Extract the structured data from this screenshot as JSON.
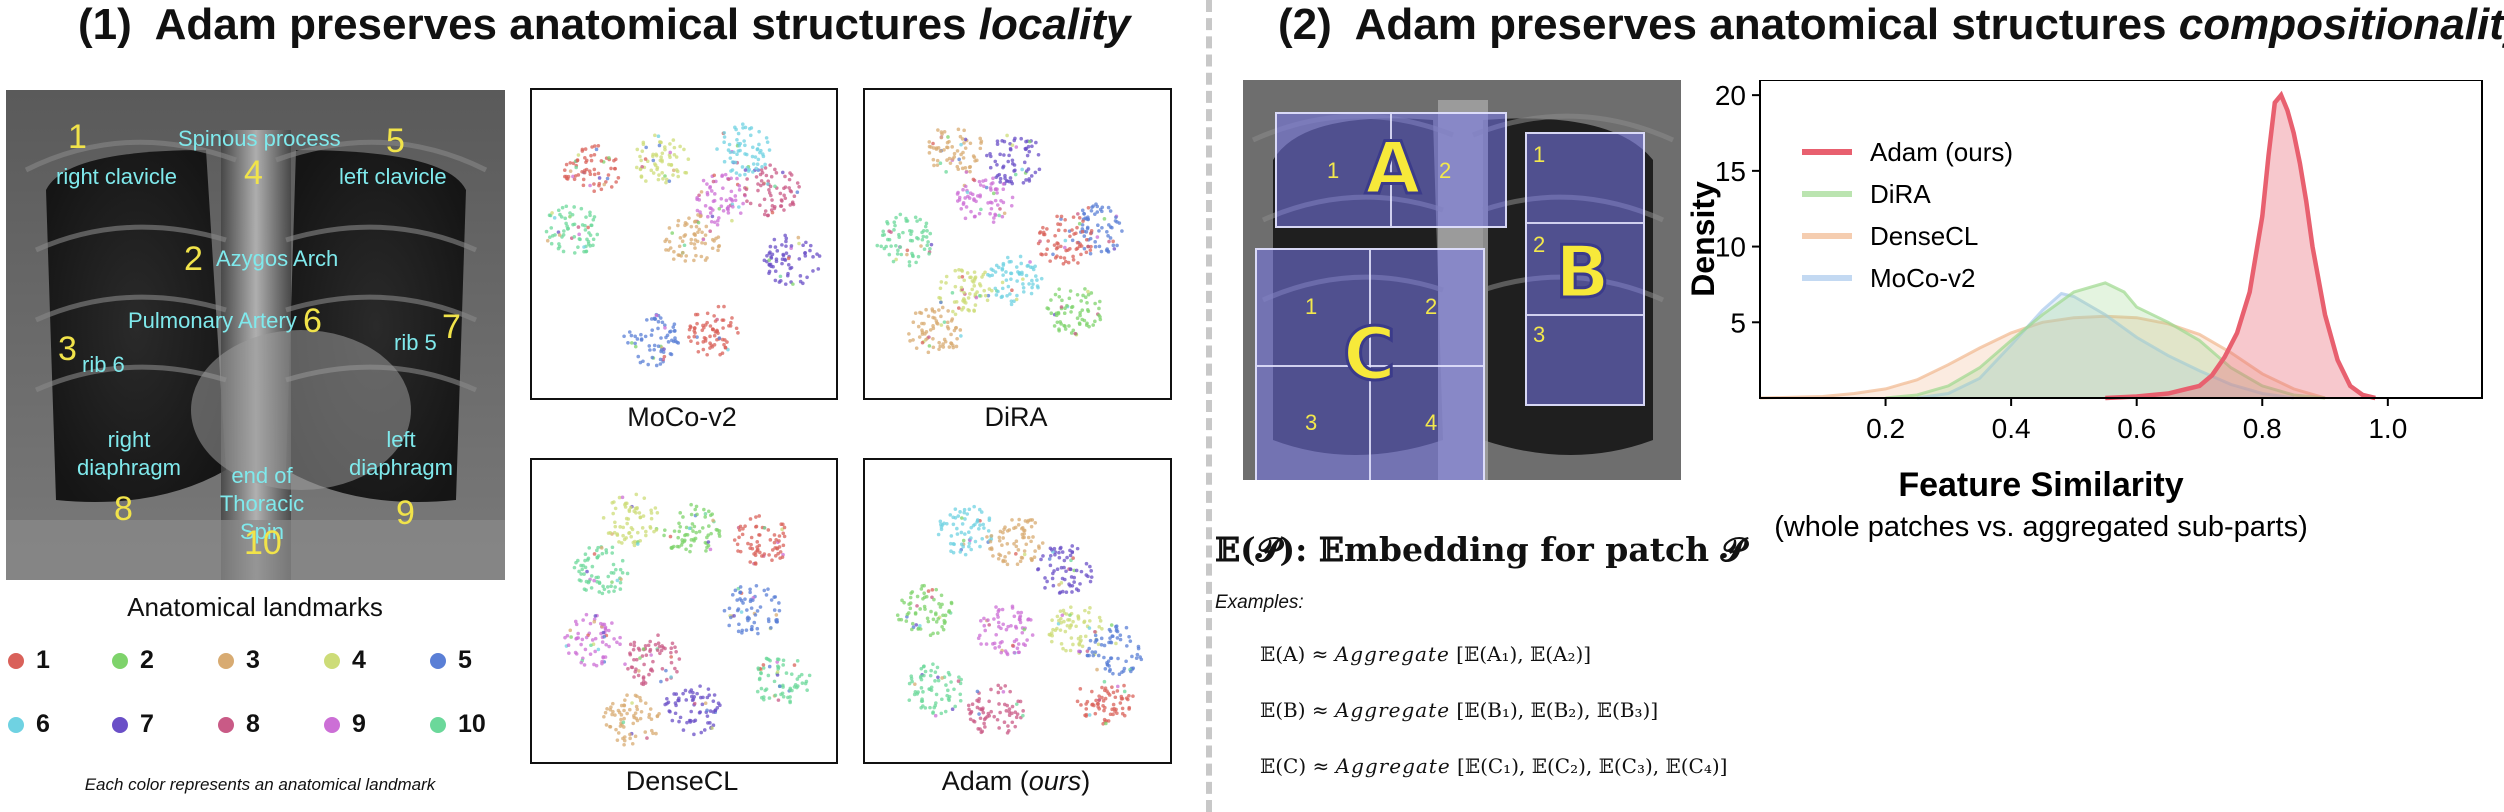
{
  "panel1": {
    "num": "(1)",
    "title": "Adam preserves anatomical structures ",
    "title_em": "locality"
  },
  "panel2": {
    "num": "(2)",
    "title": "Adam preserves anatomical structures ",
    "title_em": "compositionality"
  },
  "xray_labels": [
    {
      "n": "1",
      "text": "right clavicle"
    },
    {
      "n": "2",
      "text": "Azygos Arch"
    },
    {
      "n": "3",
      "text": "rib 6"
    },
    {
      "n": "4",
      "text": "Spinous process"
    },
    {
      "n": "5",
      "text": "left clavicle"
    },
    {
      "n": "6",
      "text": "Pulmonary Artery"
    },
    {
      "n": "7",
      "text": "rib 5"
    },
    {
      "n": "8",
      "text": "right diaphragm"
    },
    {
      "n": "9",
      "text": "left diaphragm"
    },
    {
      "n": "10",
      "text": "end of Thoracic Spin"
    }
  ],
  "legend": {
    "title": "Anatomical landmarks",
    "footnote": "Each color represents an anatomical landmark",
    "items": [
      {
        "label": "1",
        "color": "#d9615a"
      },
      {
        "label": "2",
        "color": "#7ed36b"
      },
      {
        "label": "3",
        "color": "#d8ab72"
      },
      {
        "label": "4",
        "color": "#cddc78"
      },
      {
        "label": "5",
        "color": "#5a7fd6"
      },
      {
        "label": "6",
        "color": "#6fd2e2"
      },
      {
        "label": "7",
        "color": "#6a4fc7"
      },
      {
        "label": "8",
        "color": "#c95a86"
      },
      {
        "label": "9",
        "color": "#cc6fd6"
      },
      {
        "label": "10",
        "color": "#6bd89a"
      }
    ]
  },
  "tsne": {
    "mocov2": "MoCo-v2",
    "dira": "DiRA",
    "densecl": "DenseCL",
    "adam": "Adam (",
    "adam_em": "ours",
    "adam_close": ")"
  },
  "patches": {
    "A": "A",
    "B": "B",
    "C": "C",
    "a1": "1",
    "a2": "2",
    "b1": "1",
    "b2": "2",
    "b3": "3",
    "c1": "1",
    "c2": "2",
    "c3": "3",
    "c4": "4"
  },
  "embedding": {
    "title": "𝔼(𝓟): 𝔼mbedding for patch 𝓟",
    "examples": "Examples:",
    "eqA_lhs": "𝔼(A) ≈ ",
    "eqA_ag": "Aggregate",
    "eqA_rhs": " [𝔼(A₁), 𝔼(A₂)]",
    "eqB_lhs": "𝔼(B) ≈ ",
    "eqB_ag": "Aggregate",
    "eqB_rhs": " [𝔼(B₁), 𝔼(B₂), 𝔼(B₃)]",
    "eqC_lhs": "𝔼(C) ≈ ",
    "eqC_ag": "Aggregate",
    "eqC_rhs": " [𝔼(C₁), 𝔼(C₂), 𝔼(C₃), 𝔼(C₄)]"
  },
  "chart_data": {
    "type": "area",
    "xlabel": "Feature Similarity",
    "xlabel_sub": "(whole patches vs. aggregated sub-parts)",
    "ylabel": "Density",
    "xlim": [
      0.0,
      1.15
    ],
    "ylim": [
      0,
      21
    ],
    "xticks": [
      "0.2",
      "0.4",
      "0.6",
      "0.8",
      "1.0"
    ],
    "xtick_values": [
      0.2,
      0.4,
      0.6,
      0.8,
      1.0
    ],
    "yticks": [
      "5",
      "10",
      "15",
      "20"
    ],
    "ytick_values": [
      5,
      10,
      15,
      20
    ],
    "legend_position": "top-left",
    "series": [
      {
        "name": "Adam (ours)",
        "color": "#e8606f",
        "x": [
          0.55,
          0.6,
          0.65,
          0.68,
          0.7,
          0.72,
          0.74,
          0.76,
          0.78,
          0.8,
          0.81,
          0.82,
          0.83,
          0.84,
          0.85,
          0.86,
          0.87,
          0.88,
          0.9,
          0.92,
          0.94,
          0.96,
          0.98
        ],
        "y": [
          0,
          0.1,
          0.3,
          0.6,
          0.8,
          1.5,
          2.7,
          4.3,
          7.0,
          12.0,
          16.0,
          19.5,
          20.0,
          19.0,
          17.5,
          15.5,
          13.0,
          10.0,
          5.5,
          2.5,
          0.8,
          0.2,
          0
        ]
      },
      {
        "name": "DiRA",
        "color": "#9ed98f",
        "x": [
          0.2,
          0.25,
          0.3,
          0.35,
          0.4,
          0.45,
          0.5,
          0.55,
          0.58,
          0.6,
          0.65,
          0.7,
          0.75,
          0.8,
          0.85,
          0.9
        ],
        "y": [
          0,
          0.2,
          0.8,
          2.0,
          3.8,
          5.5,
          7.0,
          7.6,
          7.0,
          6.0,
          5.0,
          3.8,
          2.0,
          0.8,
          0.2,
          0
        ]
      },
      {
        "name": "DenseCL",
        "color": "#f1b88f",
        "x": [
          0.0,
          0.1,
          0.15,
          0.2,
          0.25,
          0.3,
          0.35,
          0.4,
          0.45,
          0.5,
          0.55,
          0.6,
          0.65,
          0.7,
          0.75,
          0.8,
          0.85,
          0.9
        ],
        "y": [
          0,
          0.1,
          0.3,
          0.6,
          1.2,
          2.2,
          3.3,
          4.3,
          5.0,
          5.3,
          5.4,
          5.3,
          4.9,
          4.2,
          3.0,
          1.6,
          0.6,
          0
        ]
      },
      {
        "name": "MoCo-v2",
        "color": "#a9c9ec",
        "x": [
          0.25,
          0.3,
          0.35,
          0.4,
          0.45,
          0.48,
          0.5,
          0.55,
          0.6,
          0.65,
          0.7,
          0.75,
          0.8,
          0.85
        ],
        "y": [
          0,
          0.3,
          1.3,
          3.5,
          5.8,
          6.9,
          6.7,
          5.5,
          4.0,
          2.8,
          1.8,
          0.9,
          0.3,
          0
        ]
      }
    ]
  }
}
